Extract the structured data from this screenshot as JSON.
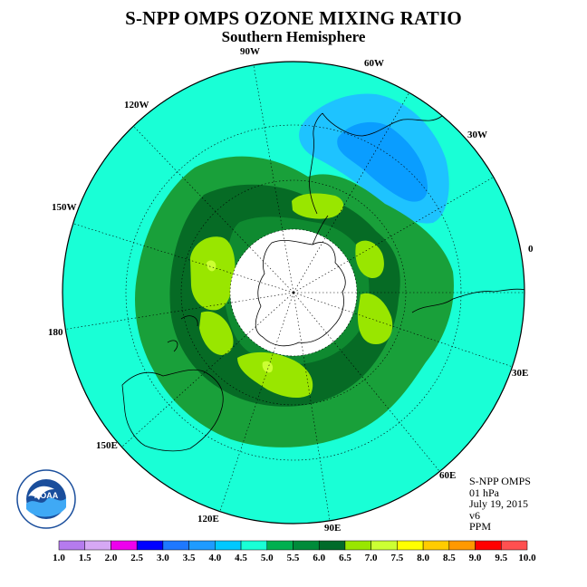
{
  "title": "S-NPP OMPS OZONE MIXING RATIO",
  "subtitle": "Southern Hemisphere",
  "info": {
    "instrument": "S-NPP OMPS",
    "level": "01 hPa",
    "date": "July 19, 2015",
    "version": "v6",
    "units": "PPM"
  },
  "logo": {
    "name": "noaa-logo",
    "text": "NOAA"
  },
  "longitude_labels": [
    "0",
    "30W",
    "60W",
    "90W",
    "120W",
    "150W",
    "180",
    "150E",
    "120E",
    "90E",
    "60E",
    "30E"
  ],
  "colorbar": {
    "ticks": [
      "1.0",
      "1.5",
      "2.0",
      "2.5",
      "3.0",
      "3.5",
      "4.0",
      "4.5",
      "5.0",
      "5.5",
      "6.0",
      "6.5",
      "7.0",
      "7.5",
      "8.0",
      "8.5",
      "9.0",
      "9.5",
      "10.0"
    ],
    "colors": [
      "#b57bee",
      "#d6a8f4",
      "#ee00ee",
      "#0000ff",
      "#1e78ff",
      "#1e9bff",
      "#00c8ff",
      "#19ffd6",
      "#00b050",
      "#008b3a",
      "#006b2a",
      "#99e600",
      "#ccff33",
      "#ffff00",
      "#ffcc00",
      "#ff9900",
      "#ff0000",
      "#ff5050",
      "#8b5a2b"
    ]
  },
  "colors": {
    "background_field": "#19ffd6",
    "band_5_5": "#19a03a",
    "band_5_5_6": "#0f8a30",
    "band_6": "#066b25",
    "band_6_5": "#99e600",
    "low_4_5": "#1ec3ff",
    "low_4": "#0a9dff",
    "polar_cap": "#ffffff"
  }
}
